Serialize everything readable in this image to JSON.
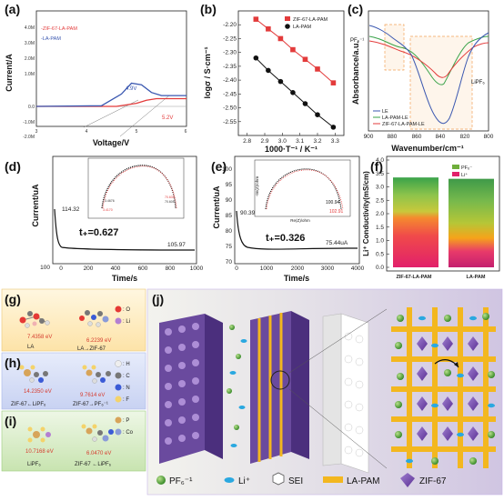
{
  "panels": {
    "a": {
      "label": "(a)",
      "xlabel": "Voltage/V",
      "ylabel": "Current/A",
      "x_ticks": [
        "3",
        "4",
        "5",
        "6"
      ],
      "y_ticks": [
        "4.0M",
        "3.0M",
        "2.0M",
        "1.0M",
        "0.0",
        "-1.0M",
        "-2.0M"
      ],
      "legend": [
        "-ZIF-67-LA-PAM",
        "-LA-PAM"
      ],
      "annotations": [
        "4.9V",
        "5.2V"
      ]
    },
    "b": {
      "label": "(b)",
      "xlabel": "1000·T⁻¹ / K⁻¹",
      "ylabel": "logσ / S·cm⁻¹",
      "legend": [
        "ZIF-67-LA-PAM",
        "LA-PAM"
      ]
    },
    "c": {
      "label": "(c)",
      "xlabel": "Wavenumber/cm⁻¹",
      "ylabel": "Absorbance/a.u.",
      "x_ticks": [
        "900",
        "880",
        "860",
        "840",
        "820",
        "800"
      ],
      "annotations": [
        "PF₆⁻¹",
        "LiPF₆"
      ],
      "legend": [
        "LE",
        "LA-PAM-LE",
        "ZIF-67-LA-PAM-LE"
      ]
    },
    "d": {
      "label": "(d)",
      "xlabel": "Time/s",
      "ylabel": "Current/uA",
      "x_ticks": [
        "0",
        "200",
        "400",
        "600",
        "800",
        "1000"
      ],
      "y_ticks": [
        "100"
      ],
      "values": [
        "114.32",
        "105.97"
      ],
      "tplus": "t₊=0.627",
      "inset_values": [
        "3.4676",
        "70.632",
        "3.4170",
        "70.605"
      ]
    },
    "e": {
      "label": "(e)",
      "xlabel": "Time/s",
      "ylabel": "Current/uA",
      "x_ticks": [
        "0",
        "1000",
        "2000",
        "3000",
        "4000"
      ],
      "y_ticks": [
        "70",
        "75",
        "80",
        "85",
        "90",
        "95",
        "100"
      ],
      "values": [
        "90.39uA",
        "75.44uA"
      ],
      "tplus": "t₊=0.326",
      "inset_xlabel": "Re(Z)/ohm",
      "inset_ylabel": "-Im(Z)/ohm",
      "inset_values": [
        "100.94",
        "102.91"
      ]
    },
    "f": {
      "label": "(f)",
      "ylabel": "Li⁺ Conductivity(mS/cm)",
      "y_ticks": [
        "0.0",
        "0.5",
        "1.0",
        "1.5",
        "2.0",
        "2.5",
        "3.0",
        "3.5",
        "4.0"
      ],
      "legend": [
        "PF₆⁻",
        "Li⁺"
      ],
      "categories": [
        "ZIF-67-LA-PAM",
        "LA-PAM"
      ]
    },
    "g": {
      "label": "(g)",
      "energies": [
        "7.4358 eV",
        "6.2239 eV"
      ],
      "names": [
        "LA",
        "LA→ZIF-67"
      ],
      "legend": [
        ": O",
        ": Li",
        ": H",
        ": C",
        ": N",
        ": F",
        ": P",
        ": Co"
      ]
    },
    "h": {
      "label": "(h)",
      "energies": [
        "14.2350 eV",
        "9.7614 eV"
      ],
      "names": [
        "ZIF-67←LiPF₆",
        "ZIF-67→PF₆⁻¹"
      ]
    },
    "i": {
      "label": "(i)",
      "energies": [
        "10.7168 eV",
        "6.0470 eV"
      ],
      "names": [
        "LiPF₆",
        "ZIF-67 ←LiPF₆"
      ]
    },
    "j": {
      "label": "(j)",
      "legend": [
        "PF₆⁻¹",
        "Li⁺",
        "SEI",
        "LA-PAM",
        "ZIF-67"
      ]
    }
  },
  "chart_data": [
    {
      "type": "line",
      "panel": "a",
      "xlabel": "Voltage/V",
      "ylabel": "Current/A",
      "xlim": [
        3,
        6
      ],
      "series": [
        {
          "name": "ZIF-67-LA-PAM",
          "color": "#e33b3b",
          "points": [
            [
              3.0,
              0.0
            ],
            [
              4.6,
              0.0
            ],
            [
              5.0,
              0.1
            ],
            [
              5.2,
              0.2
            ],
            [
              5.4,
              0.25
            ],
            [
              5.6,
              0.25
            ],
            [
              6.0,
              0.25
            ]
          ]
        },
        {
          "name": "LA-PAM",
          "color": "#3a57b0",
          "points": [
            [
              3.0,
              0.0
            ],
            [
              4.3,
              0.02
            ],
            [
              4.7,
              0.4
            ],
            [
              4.9,
              0.75
            ],
            [
              5.1,
              0.7
            ],
            [
              5.3,
              0.45
            ],
            [
              5.5,
              0.35
            ],
            [
              6.0,
              0.35
            ]
          ]
        }
      ],
      "annotations": [
        "4.9V",
        "5.2V"
      ]
    },
    {
      "type": "scatter",
      "panel": "b",
      "xlabel": "1000·T⁻¹ / K⁻¹",
      "ylabel": "logσ / S·cm⁻¹",
      "xlim": [
        2.75,
        3.35
      ],
      "ylim": [
        -2.6,
        -2.15
      ],
      "x_ticks": [
        "2.8",
        "2.9",
        "3.0",
        "3.1",
        "3.2",
        "3.3"
      ],
      "y_ticks": [
        "-2.20",
        "-2.25",
        "-2.30",
        "-2.35",
        "-2.40",
        "-2.45",
        "-2.50",
        "-2.55"
      ],
      "series": [
        {
          "name": "ZIF-67-LA-PAM",
          "color": "#e33b3b",
          "marker": "square",
          "x": [
            2.85,
            2.92,
            2.99,
            3.06,
            3.13,
            3.2,
            3.29
          ],
          "y": [
            -2.18,
            -2.215,
            -2.25,
            -2.29,
            -2.325,
            -2.36,
            -2.41
          ]
        },
        {
          "name": "LA-PAM",
          "color": "#111111",
          "marker": "circle",
          "x": [
            2.85,
            2.92,
            2.99,
            3.06,
            3.13,
            3.2,
            3.29
          ],
          "y": [
            -2.32,
            -2.365,
            -2.405,
            -2.445,
            -2.485,
            -2.525,
            -2.57
          ]
        }
      ]
    },
    {
      "type": "bar",
      "panel": "f",
      "stacked": true,
      "ylabel": "Li⁺ Conductivity(mS/cm)",
      "ylim": [
        0,
        4.0
      ],
      "categories": [
        "ZIF-67-LA-PAM",
        "LA-PAM"
      ],
      "series": [
        {
          "name": "Li⁺",
          "values": [
            2.1,
            1.08
          ]
        },
        {
          "name": "PF₆⁻",
          "values": [
            1.25,
            2.22
          ]
        }
      ]
    }
  ]
}
